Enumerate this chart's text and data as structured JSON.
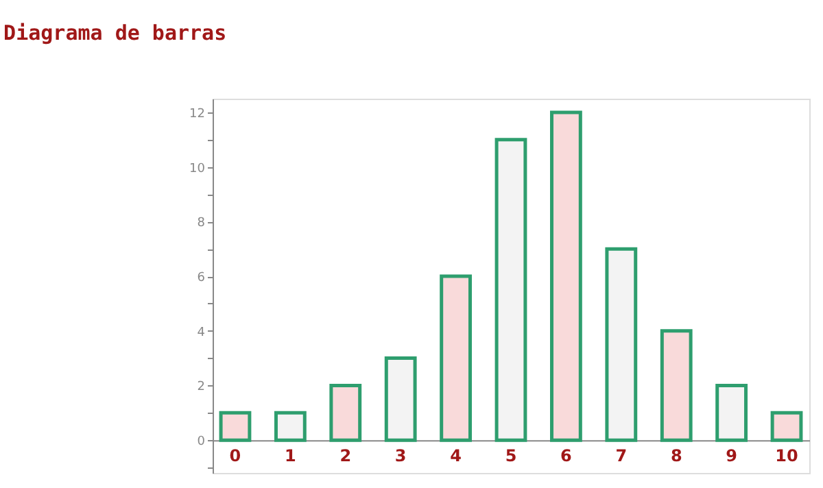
{
  "chart_data": {
    "type": "bar",
    "title": "Diagrama de barras",
    "categories": [
      "0",
      "1",
      "2",
      "3",
      "4",
      "5",
      "6",
      "7",
      "8",
      "9",
      "10"
    ],
    "values": [
      1,
      1,
      2,
      3,
      6,
      11,
      12,
      7,
      4,
      2,
      1
    ],
    "colors": [
      "#f9dada",
      "#f3f3f3",
      "#f9dada",
      "#f3f3f3",
      "#f9dada",
      "#f3f3f3",
      "#f9dada",
      "#f3f3f3",
      "#f9dada",
      "#f3f3f3",
      "#f9dada"
    ],
    "ylim": [
      -1.2,
      12.5
    ],
    "yticks": [
      {
        "value": -1,
        "label": null
      },
      0,
      {
        "value": 1,
        "label": null
      },
      2,
      {
        "value": 3,
        "label": null
      },
      4,
      {
        "value": 5,
        "label": null
      },
      6,
      {
        "value": 7,
        "label": null
      },
      8,
      {
        "value": 9,
        "label": null
      },
      10,
      {
        "value": 11,
        "label": null
      },
      12
    ],
    "grid": false
  }
}
